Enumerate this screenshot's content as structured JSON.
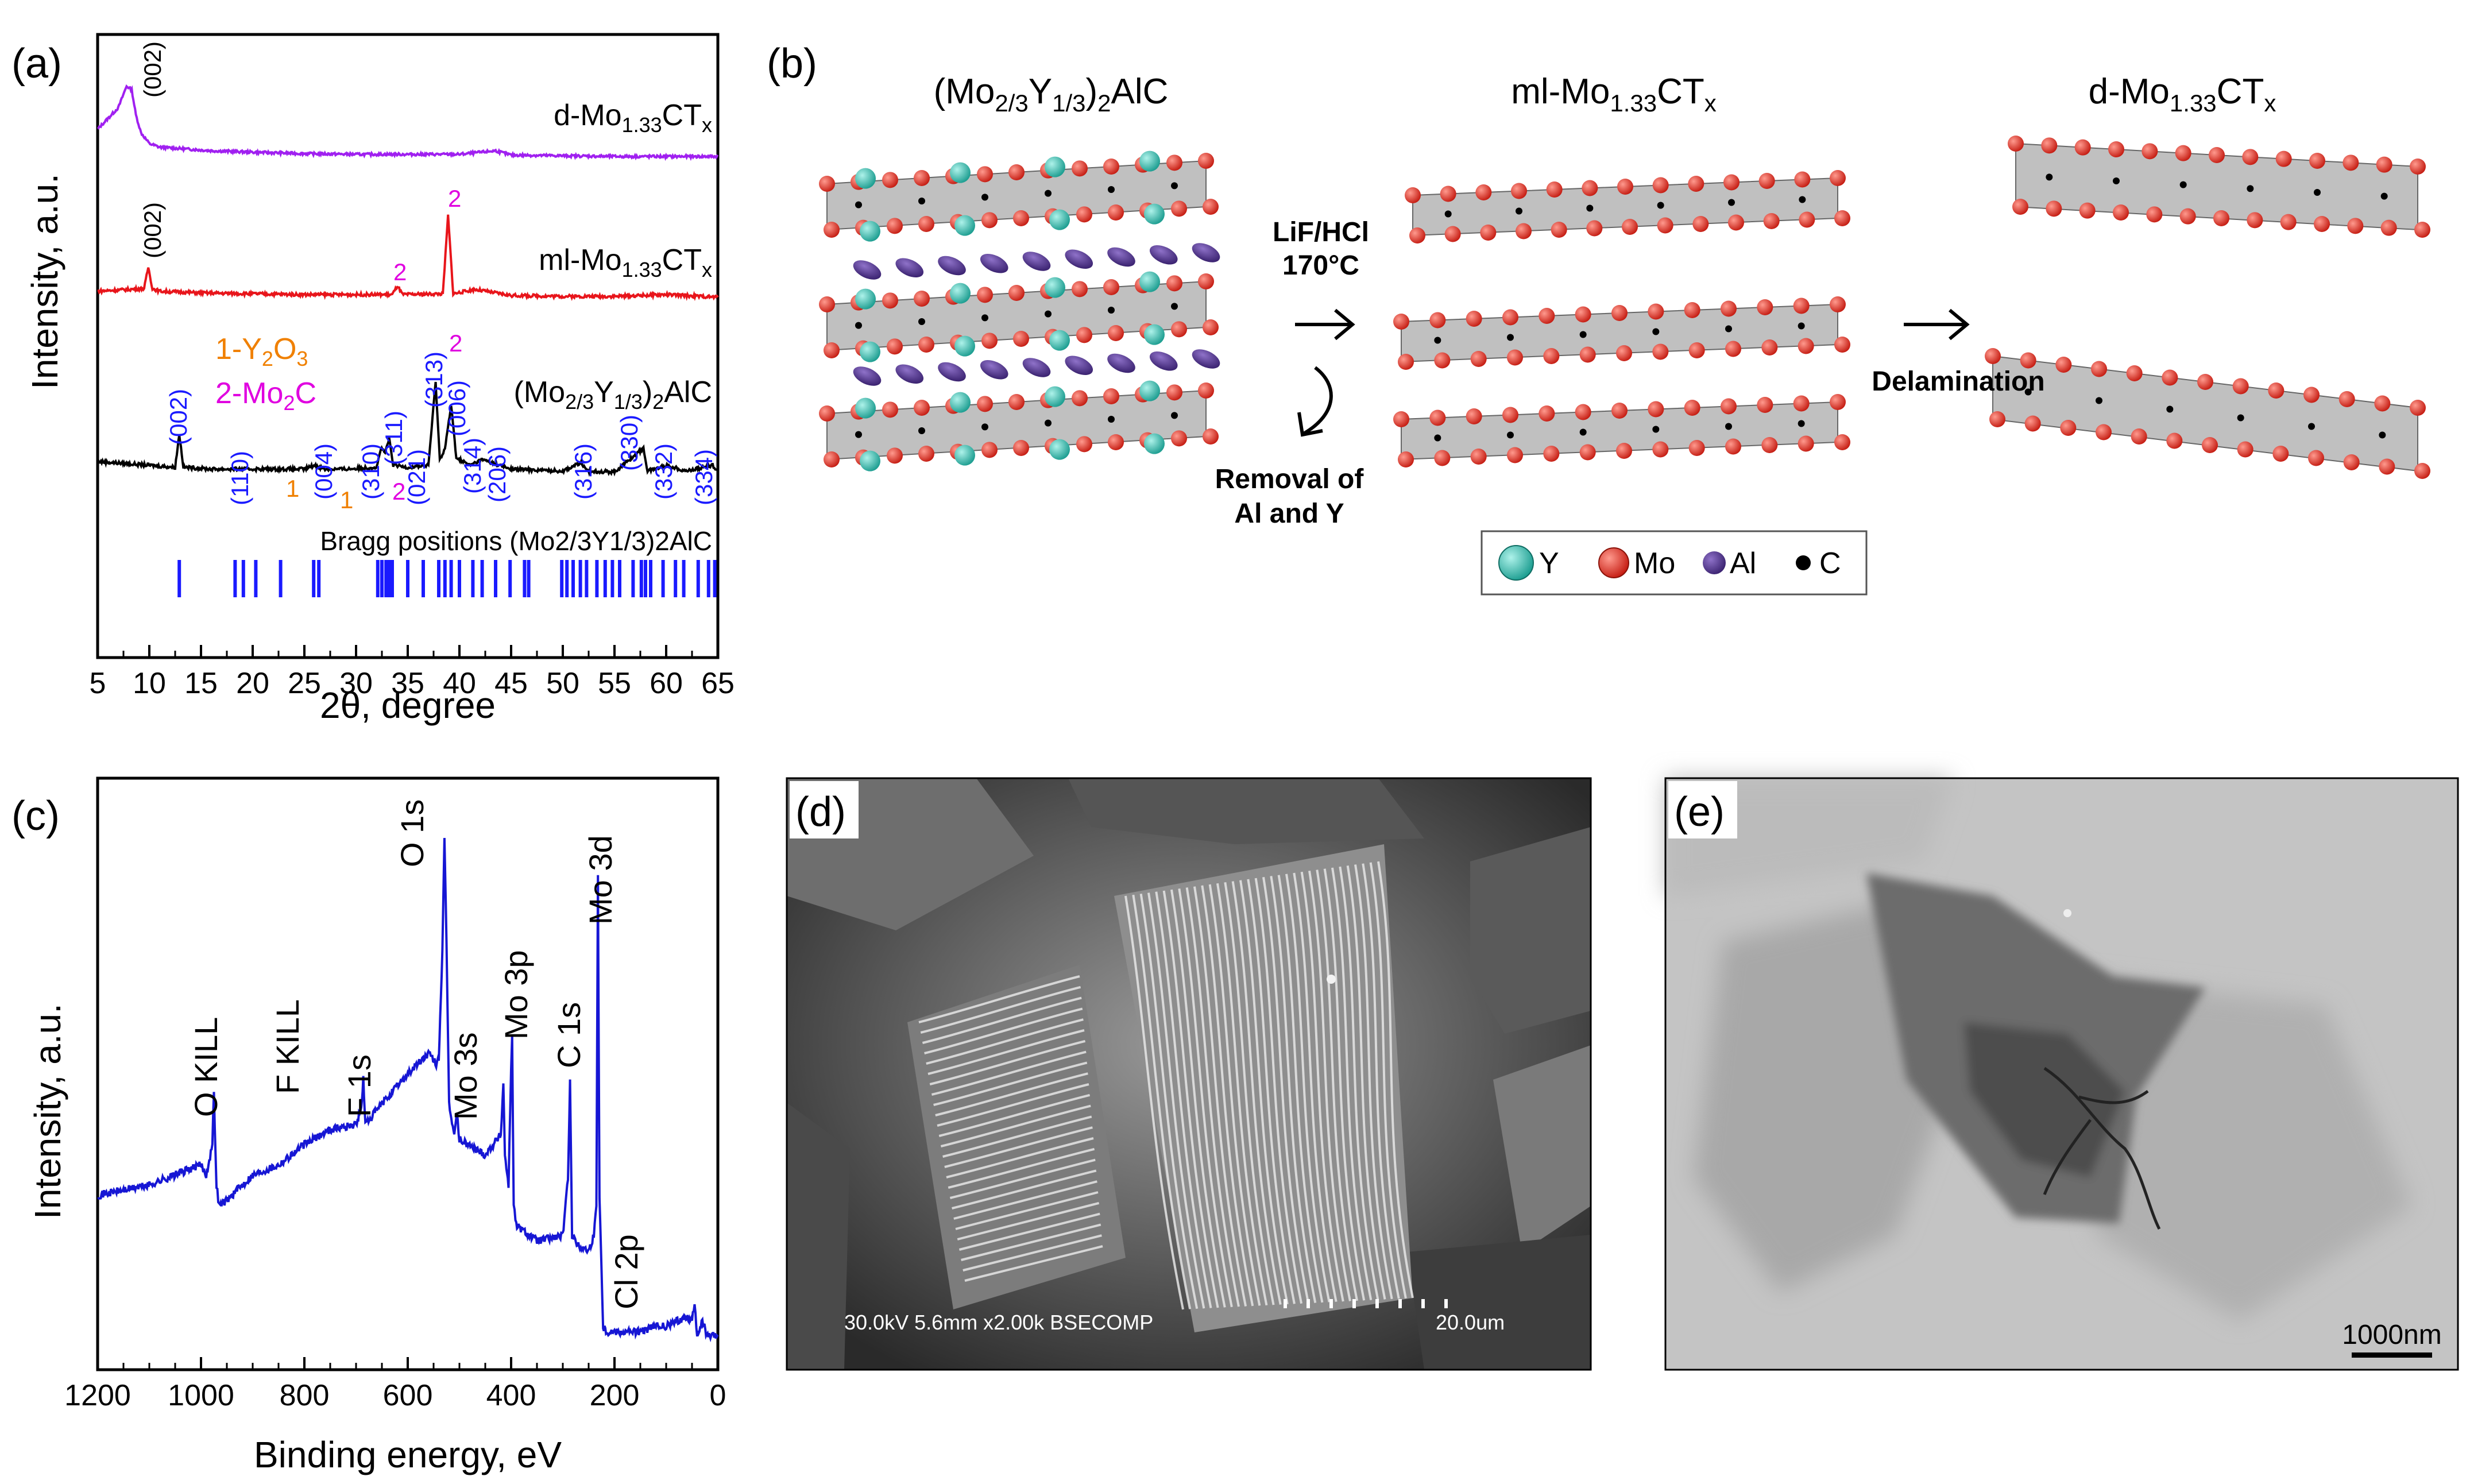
{
  "panels": {
    "a": {
      "label": "(a)"
    },
    "b": {
      "label": "(b)"
    },
    "c": {
      "label": "(c)"
    },
    "d": {
      "label": "(d)"
    },
    "e": {
      "label": "(e)"
    }
  },
  "schematic": {
    "col1_title": "(Mo2/3Y1/3)2AlC",
    "col2_title": "ml-Mo1.33CTx",
    "col3_title": "d-Mo1.33CTx",
    "step1_line1": "LiF/HCl",
    "step1_line2": "170°C",
    "removal_line1": "Removal  of",
    "removal_line2": "Al and Y",
    "delamination": "Delamination",
    "legend": [
      {
        "label": "Y",
        "color": "#2ab7a9"
      },
      {
        "label": "Mo",
        "color": "#e8291c"
      },
      {
        "label": "Al",
        "color": "#4b2e83"
      },
      {
        "label": "C",
        "color": "#000000"
      }
    ]
  },
  "sem": {
    "info": "30.0kV 5.6mm x2.00k BSECOMP",
    "scale": "20.0um"
  },
  "tem": {
    "scale": "1000nm"
  },
  "chart_data": [
    {
      "type": "line",
      "panel": "a",
      "xlabel": "2θ, degree",
      "ylabel": "Intensity, a.u.",
      "xlim": [
        5,
        65
      ],
      "xticks": [
        5,
        10,
        15,
        20,
        25,
        30,
        35,
        40,
        45,
        50,
        55,
        60,
        65
      ],
      "y_ticks_shown": false,
      "series": [
        {
          "name": "d-Mo1.33CTx",
          "color": "#a020f0",
          "x": [
            5,
            6,
            7,
            7.8,
            8.3,
            8.7,
            9.2,
            10,
            11,
            13,
            16,
            20,
            25,
            30,
            35,
            40,
            43.5,
            45,
            50,
            55,
            60,
            65
          ],
          "y": [
            0.4,
            0.55,
            0.7,
            1.0,
            0.95,
            0.6,
            0.35,
            0.2,
            0.15,
            0.13,
            0.1,
            0.08,
            0.06,
            0.05,
            0.05,
            0.05,
            0.1,
            0.04,
            0.03,
            0.02,
            0.02,
            0.02
          ]
        },
        {
          "name": "ml-Mo1.33CTx",
          "color": "#e8151b",
          "x": [
            5,
            8,
            9.5,
            9.9,
            10.3,
            11,
            15,
            20,
            25,
            30,
            33.5,
            34,
            34.5,
            38.4,
            38.9,
            39.4,
            41.5,
            45,
            50,
            55,
            60,
            65
          ],
          "y": [
            0.12,
            0.14,
            0.15,
            0.4,
            0.15,
            0.12,
            0.1,
            0.09,
            0.08,
            0.08,
            0.08,
            0.18,
            0.08,
            0.09,
            1.0,
            0.09,
            0.14,
            0.07,
            0.06,
            0.06,
            0.08,
            0.05
          ]
        },
        {
          "name": "(Mo2/3Y1/3)2AlC",
          "color": "#000000",
          "x": [
            5,
            10,
            12.5,
            12.9,
            13.3,
            16,
            20,
            25,
            26,
            27,
            29,
            32,
            32.4,
            32.8,
            33.2,
            33.6,
            35,
            37,
            37.7,
            38.1,
            38.6,
            39.2,
            39.7,
            41,
            42.2,
            45,
            50,
            51.8,
            52.3,
            55,
            57.8,
            58.2,
            60,
            62,
            64.5,
            65
          ],
          "y": [
            0.16,
            0.12,
            0.1,
            0.45,
            0.1,
            0.08,
            0.08,
            0.08,
            0.12,
            0.08,
            0.08,
            0.1,
            0.3,
            0.25,
            0.4,
            0.12,
            0.1,
            0.12,
            1.0,
            0.18,
            0.3,
            0.75,
            0.2,
            0.12,
            0.18,
            0.08,
            0.06,
            0.15,
            0.06,
            0.05,
            0.3,
            0.06,
            0.12,
            0.06,
            0.12,
            0.05
          ]
        }
      ],
      "series_labels": [
        "d-Mo1.33CTx",
        "ml-Mo1.33CTx",
        "(Mo2/3Y1/3)2AlC"
      ],
      "legend_phases": [
        "1-Y2O3",
        "2-Mo2C"
      ],
      "peak_labels": [
        "(002)",
        "(110)",
        "(004)",
        "(310)",
        "(311)",
        "(021)",
        "(313)",
        "(006)",
        "(314)",
        "(206)",
        "(316)",
        "(330)",
        "(332)",
        "(334)"
      ],
      "phase_marks": [
        "1",
        "1",
        "2",
        "2",
        "2"
      ],
      "bragg_label": "Bragg positions (Mo2/3Y1/3)2AlC",
      "bragg_positions": [
        12.9,
        18.3,
        19.1,
        20.3,
        22.7,
        25.9,
        26.4,
        32.1,
        32.5,
        32.9,
        33.2,
        33.5,
        35.0,
        36.5,
        38.0,
        38.6,
        39.2,
        40.0,
        41.3,
        42.2,
        43.5,
        44.9,
        46.3,
        46.7,
        49.9,
        50.4,
        51.0,
        51.7,
        52.3,
        53.3,
        54.1,
        54.8,
        55.5,
        56.8,
        57.6,
        58.0,
        58.5,
        59.7,
        60.9,
        61.7,
        63.1,
        64.1,
        64.7
      ]
    },
    {
      "type": "line",
      "panel": "c",
      "xlabel": "Binding energy, eV",
      "ylabel": "Intensity, a.u.",
      "xlim": [
        1200,
        0
      ],
      "xticks": [
        1200,
        1000,
        800,
        600,
        400,
        200,
        0
      ],
      "y_ticks_shown": false,
      "series": [
        {
          "color": "#1616d4",
          "x": [
            1200,
            1150,
            1100,
            1050,
            1000,
            990,
            978,
            975,
            970,
            965,
            950,
            900,
            850,
            800,
            750,
            700,
            690,
            686,
            682,
            650,
            600,
            560,
            545,
            540,
            533,
            529,
            525,
            520,
            510,
            505,
            500,
            450,
            420,
            415,
            412,
            405,
            400,
            398,
            395,
            390,
            350,
            300,
            290,
            286,
            282,
            270,
            250,
            240,
            235,
            232,
            229,
            225,
            222,
            215,
            200,
            180,
            150,
            120,
            100,
            80,
            60,
            50,
            45,
            40,
            30,
            20,
            10,
            0
          ],
          "y": [
            0.3,
            0.31,
            0.32,
            0.34,
            0.36,
            0.34,
            0.4,
            0.5,
            0.32,
            0.28,
            0.29,
            0.34,
            0.36,
            0.4,
            0.43,
            0.44,
            0.47,
            0.53,
            0.44,
            0.48,
            0.54,
            0.58,
            0.56,
            0.57,
            0.78,
            1.0,
            0.8,
            0.48,
            0.42,
            0.46,
            0.41,
            0.38,
            0.42,
            0.52,
            0.38,
            0.32,
            0.55,
            0.62,
            0.28,
            0.24,
            0.21,
            0.22,
            0.33,
            0.53,
            0.22,
            0.2,
            0.19,
            0.22,
            0.28,
            0.93,
            0.3,
            0.15,
            0.04,
            0.03,
            0.03,
            0.03,
            0.03,
            0.04,
            0.04,
            0.05,
            0.06,
            0.05,
            0.09,
            0.02,
            0.05,
            0.02,
            0.02,
            0.02
          ]
        }
      ],
      "peak_labels": [
        "O KILL",
        "F KILL",
        "F 1s",
        "O 1s",
        "Mo 3s",
        "Mo 3p",
        "C 1s",
        "Mo 3d",
        "Cl 2p"
      ]
    }
  ]
}
